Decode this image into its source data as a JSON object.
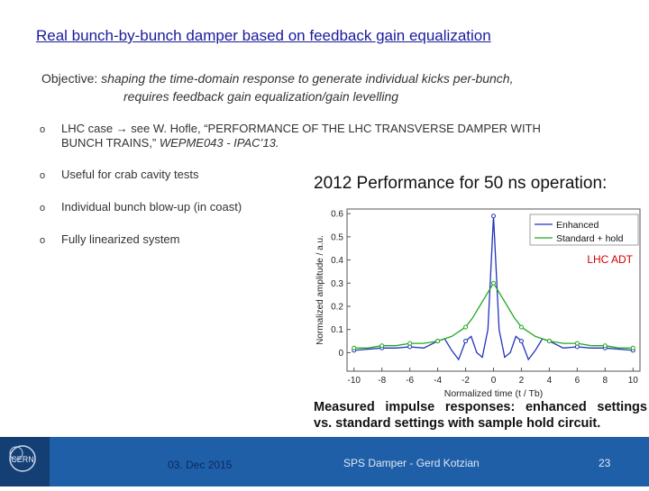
{
  "slide": {
    "title": "Real bunch-by-bunch damper based on feedback gain equalization",
    "objective_label": "Objective: ",
    "objective_line1": "shaping the time-domain response to generate individual kicks per-bunch,",
    "objective_line2": "requires feedback gain equalization/gain levelling",
    "bullets": [
      {
        "mark": "o",
        "line1": "LHC case → see W. Hofle, “PERFORMANCE OF THE LHC TRANSVERSE DAMPER WITH",
        "line2_plain": "BUNCH TRAINS,” ",
        "line2_italic": "WEPME043 - IPAC’13."
      },
      {
        "mark": "o",
        "line1": "Useful for crab cavity tests"
      },
      {
        "mark": "o",
        "line1": "Individual bunch blow-up (in coast)"
      },
      {
        "mark": "o",
        "line1": "Fully linearized system"
      }
    ]
  },
  "plot": {
    "heading": "2012 Performance for 50 ns operation:",
    "annotation": "LHC ADT",
    "caption_line1_words": [
      "Measured",
      "impulse",
      "responses:",
      "enhanced",
      "settings"
    ],
    "caption_line2": "vs. standard settings with sample hold circuit."
  },
  "chart_data": {
    "type": "line",
    "title": "2012 Performance for 50 ns operation:",
    "xlabel": "Normalized time (t / Tb)",
    "ylabel": "Normalized amplitude / a.u.",
    "xlim": [
      -10.5,
      10.5
    ],
    "ylim": [
      -0.08,
      0.62
    ],
    "xticks": [
      -10,
      -8,
      -6,
      -4,
      -2,
      0,
      2,
      4,
      6,
      8,
      10
    ],
    "yticks": [
      0,
      0.1,
      0.2,
      0.3,
      0.4,
      0.5,
      0.6
    ],
    "ytick_labels": [
      "0",
      "0.1",
      "0.2",
      "0.3",
      "0.4",
      "0.5",
      "0.6"
    ],
    "legend_position": "top-right",
    "grid": false,
    "series": [
      {
        "name": "Enhanced",
        "color": "#2233bb",
        "x": [
          -10,
          -9,
          -8,
          -7,
          -6,
          -5,
          -4,
          -3.5,
          -3,
          -2.5,
          -2,
          -1.6,
          -1.2,
          -0.8,
          -0.4,
          0,
          0.4,
          0.8,
          1.2,
          1.6,
          2,
          2.5,
          3,
          3.5,
          4,
          5,
          6,
          7,
          8,
          9,
          10
        ],
        "y": [
          0.01,
          0.015,
          0.02,
          0.02,
          0.025,
          0.02,
          0.05,
          0.06,
          0.01,
          -0.03,
          0.05,
          0.07,
          0.0,
          -0.02,
          0.1,
          0.59,
          0.1,
          -0.02,
          0.0,
          0.07,
          0.05,
          -0.03,
          0.01,
          0.06,
          0.05,
          0.02,
          0.025,
          0.02,
          0.02,
          0.015,
          0.01
        ]
      },
      {
        "name": "Standard + hold",
        "color": "#22aa22",
        "x": [
          -10,
          -9,
          -8,
          -7,
          -6,
          -5,
          -4,
          -3,
          -2,
          -1.5,
          -1,
          -0.5,
          0,
          0.5,
          1,
          1.5,
          2,
          3,
          4,
          5,
          6,
          7,
          8,
          9,
          10
        ],
        "y": [
          0.02,
          0.02,
          0.03,
          0.03,
          0.04,
          0.04,
          0.05,
          0.07,
          0.11,
          0.15,
          0.2,
          0.25,
          0.3,
          0.25,
          0.2,
          0.15,
          0.11,
          0.07,
          0.05,
          0.04,
          0.04,
          0.03,
          0.03,
          0.02,
          0.02
        ]
      }
    ]
  },
  "footer": {
    "date": "03. Dec 2015",
    "author": "SPS Damper - Gerd Kotzian",
    "page": "23",
    "logo_text": "CERN"
  }
}
